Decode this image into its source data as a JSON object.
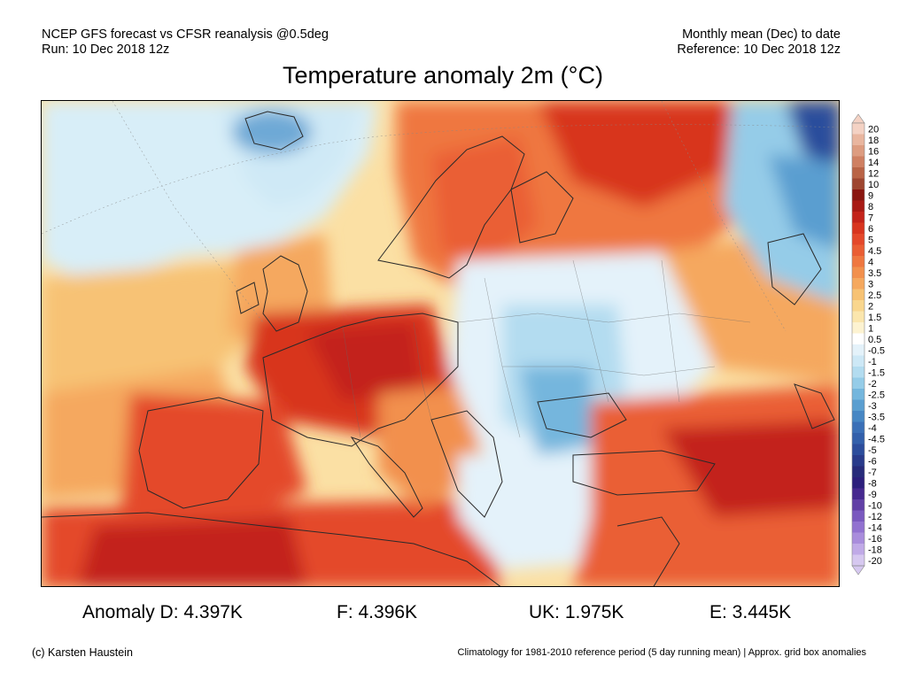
{
  "header": {
    "line1_left": "NCEP GFS forecast vs CFSR reanalysis @0.5deg",
    "line2_left": "Run: 10 Dec 2018 12z",
    "line1_right": "Monthly mean (Dec) to date",
    "line2_right": "Reference: 10 Dec 2018 12z"
  },
  "title": "Temperature anomaly 2m (°C)",
  "legend": {
    "labels": [
      "20",
      "18",
      "16",
      "14",
      "12",
      "10",
      "9",
      "8",
      "7",
      "6",
      "5",
      "4.5",
      "4",
      "3.5",
      "3",
      "2.5",
      "2",
      "1.5",
      "1",
      "0.5",
      "-0.5",
      "-1",
      "-1.5",
      "-2",
      "-2.5",
      "-3",
      "-3.5",
      "-4",
      "-4.5",
      "-5",
      "-6",
      "-7",
      "-8",
      "-9",
      "-10",
      "-12",
      "-14",
      "-16",
      "-18",
      "-20"
    ],
    "colors": [
      "#f4d2c4",
      "#e9b69f",
      "#dd9c80",
      "#cf8062",
      "#b96446",
      "#9e4630",
      "#8a1610",
      "#a81a14",
      "#c3231a",
      "#d8351f",
      "#e4482a",
      "#ea5e34",
      "#ef7740",
      "#f2904d",
      "#f5a85e",
      "#f7c274",
      "#f9d68e",
      "#fbe6ad",
      "#fdf3d1",
      "#ffffff",
      "#e4f2fa",
      "#cde8f6",
      "#b3dcf0",
      "#95cce8",
      "#74b6dd",
      "#5a9ed0",
      "#4787c4",
      "#3b70b7",
      "#3360ab",
      "#2c4d9c",
      "#293b8b",
      "#272b7a",
      "#2c1f7c",
      "#46298f",
      "#6140a6",
      "#7a59bf",
      "#9272d0",
      "#a98ddc",
      "#c0aae7",
      "#d6c8f0"
    ]
  },
  "stats": [
    {
      "label": "Anomaly D: 4.397K"
    },
    {
      "label": "F: 4.396K"
    },
    {
      "label": "UK: 1.975K"
    },
    {
      "label": "E: 3.445K"
    }
  ],
  "footer": {
    "left": "(c) Karsten Haustein",
    "right": "Climatology for 1981-2010 reference period (5 day running mean) | Approx. grid box anomalies"
  }
}
